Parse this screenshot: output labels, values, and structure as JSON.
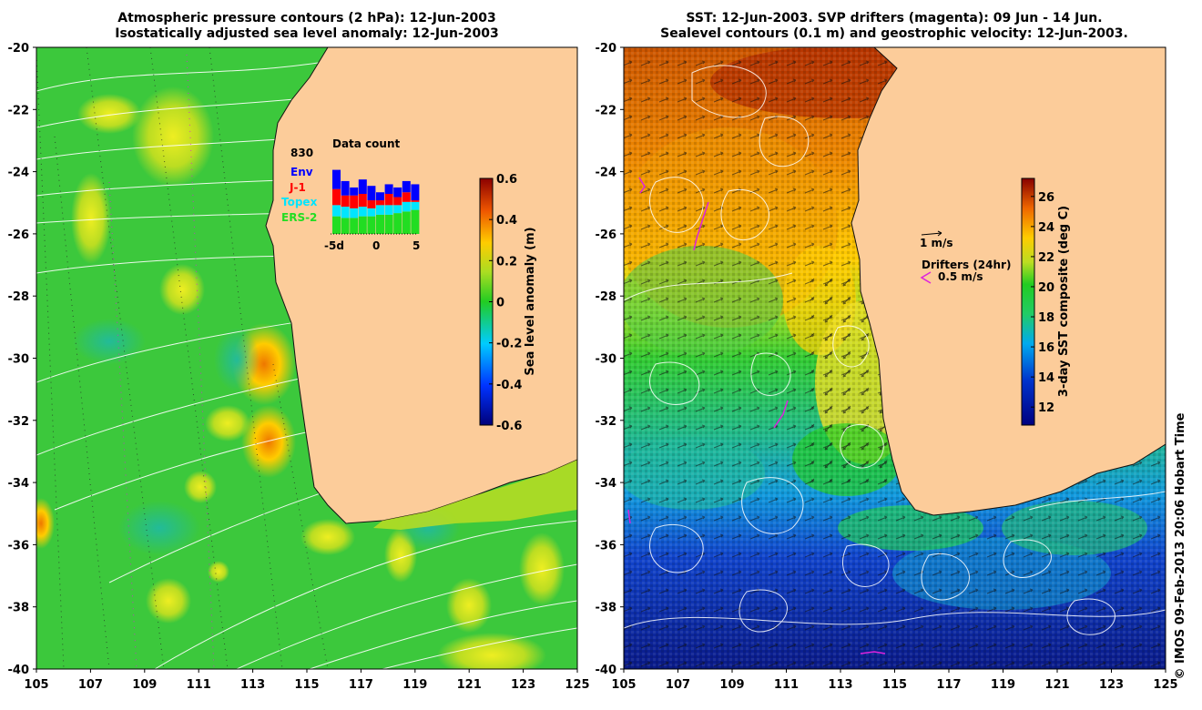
{
  "left_panel": {
    "title_line1": "Atmospheric pressure contours (2 hPa): 12-Jun-2003",
    "title_line2": "Isostatically adjusted sea level anomaly: 12-Jun-2003",
    "colorbar": {
      "label": "Sea level anomaly (m)",
      "ticks": [
        "0.6",
        "0.4",
        "0.2",
        "0",
        "-0.2",
        "-0.4",
        "-0.6"
      ],
      "min": -0.6,
      "max": 0.6
    },
    "data_count": {
      "title": "Data count",
      "max_value": "830",
      "legend": [
        {
          "label": "Env",
          "color": "#0000ff"
        },
        {
          "label": "J-1",
          "color": "#ff0000"
        },
        {
          "label": "Topex",
          "color": "#00e5ff"
        },
        {
          "label": "ERS-2",
          "color": "#22dd22"
        }
      ],
      "x_ticks": [
        "-5d",
        "0",
        "5"
      ],
      "bars": [
        {
          "day": -5,
          "ers2": 0.22,
          "topex": 0.14,
          "j1": 0.2,
          "env": 0.24
        },
        {
          "day": -4,
          "ers2": 0.2,
          "topex": 0.14,
          "j1": 0.14,
          "env": 0.18
        },
        {
          "day": -3,
          "ers2": 0.2,
          "topex": 0.12,
          "j1": 0.16,
          "env": 0.1
        },
        {
          "day": -2,
          "ers2": 0.22,
          "topex": 0.12,
          "j1": 0.16,
          "env": 0.18
        },
        {
          "day": -1,
          "ers2": 0.22,
          "topex": 0.1,
          "j1": 0.1,
          "env": 0.18
        },
        {
          "day": 0,
          "ers2": 0.24,
          "topex": 0.12,
          "j1": 0.06,
          "env": 0.1
        },
        {
          "day": 1,
          "ers2": 0.24,
          "topex": 0.12,
          "j1": 0.14,
          "env": 0.12
        },
        {
          "day": 2,
          "ers2": 0.26,
          "topex": 0.1,
          "j1": 0.1,
          "env": 0.12
        },
        {
          "day": 3,
          "ers2": 0.28,
          "topex": 0.12,
          "j1": 0.12,
          "env": 0.14
        },
        {
          "day": 4,
          "ers2": 0.3,
          "topex": 0.1,
          "j1": 0.02,
          "env": 0.2
        }
      ]
    }
  },
  "right_panel": {
    "title_line1": "SST: 12-Jun-2003. SVP drifters (magenta): 09 Jun - 14 Jun.",
    "title_line2": "Sealevel contours (0.1 m) and geostrophic velocity: 12-Jun-2003.",
    "colorbar": {
      "label": "3-day SST composite (deg C)",
      "ticks": [
        "26",
        "24",
        "22",
        "20",
        "18",
        "16",
        "14",
        "12"
      ],
      "min": 10.8,
      "max": 27.2
    },
    "velocity_legend": "1 m/s",
    "drifters_legend": "Drifters (24hr)",
    "drifter_speed": "0.5 m/s"
  },
  "axes": {
    "lat_ticks": [
      "-20",
      "-22",
      "-24",
      "-26",
      "-28",
      "-30",
      "-32",
      "-34",
      "-36",
      "-38",
      "-40"
    ],
    "lon_ticks": [
      "105",
      "107",
      "109",
      "111",
      "113",
      "115",
      "117",
      "119",
      "121",
      "123",
      "125"
    ]
  },
  "credit": "© IMOS 09-Feb-2013 20:06 Hobart Time",
  "colors": {
    "land": "#fccc9a",
    "sla_base": "#3cc83c",
    "white_contours": "#ffffff",
    "drifters": "#dd22dd"
  }
}
